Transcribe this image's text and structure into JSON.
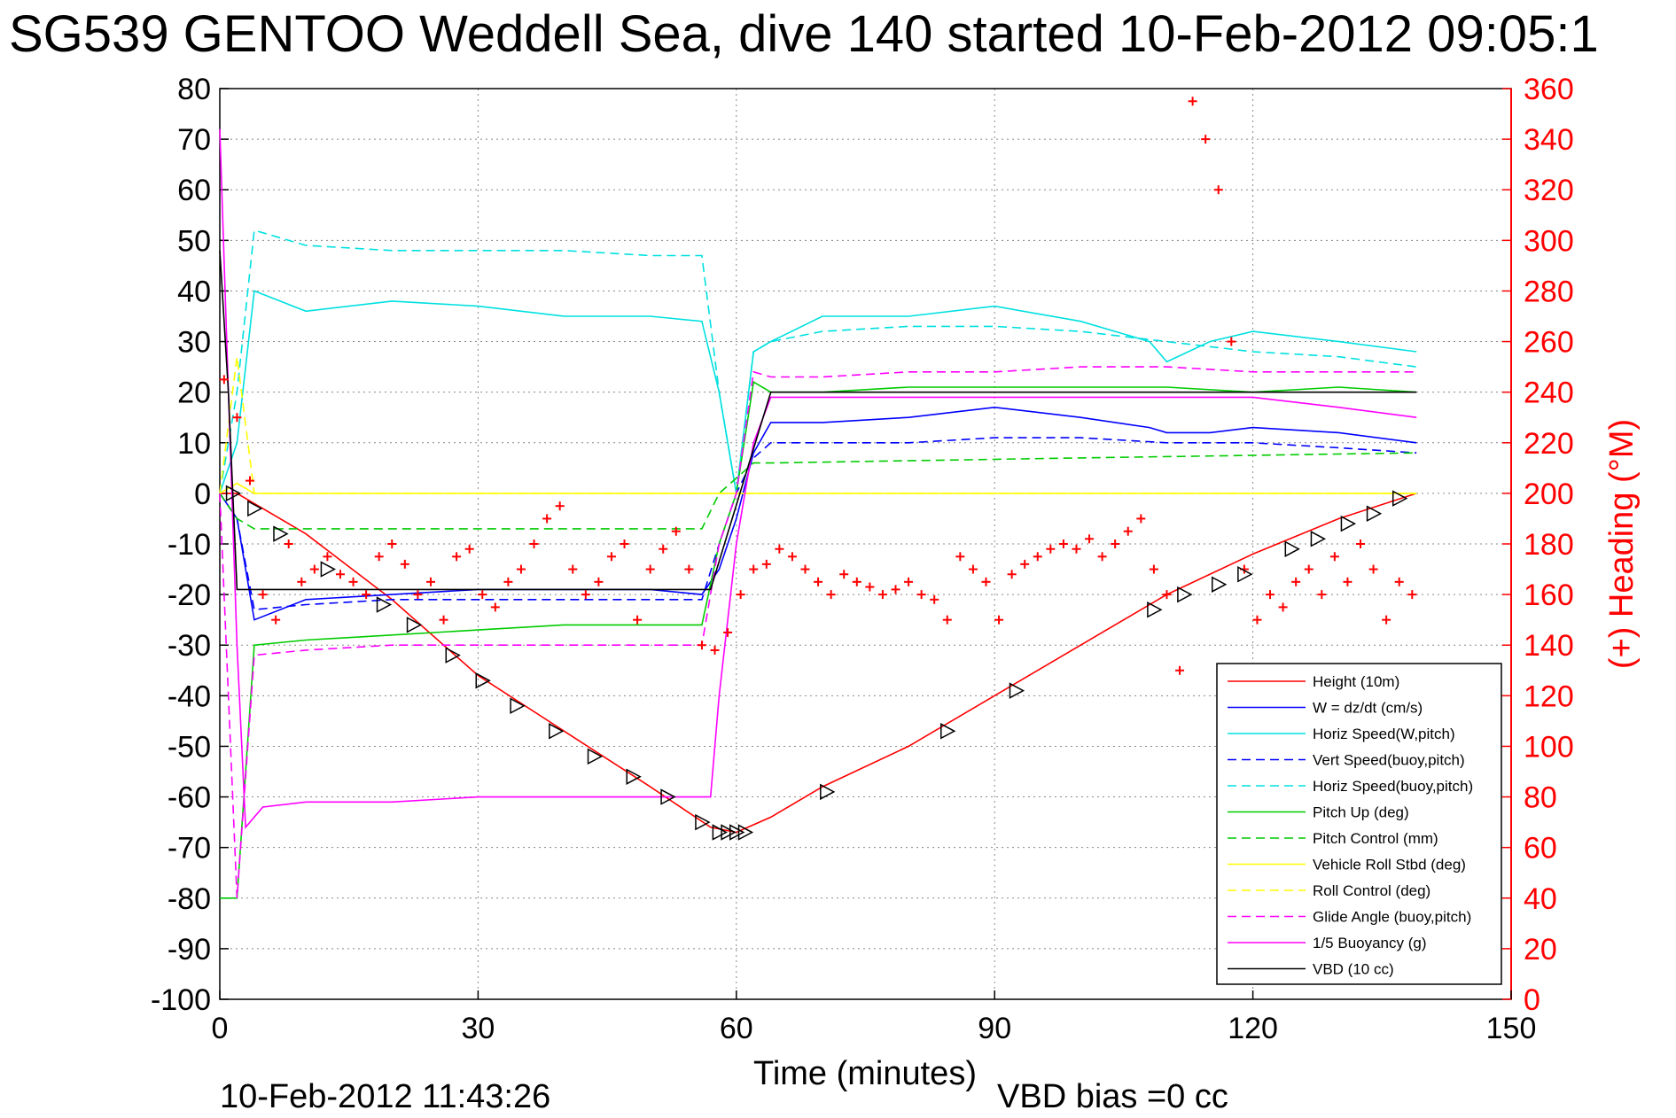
{
  "chart_data": {
    "type": "line",
    "title": "SG539 GENTOO Weddell Sea, dive 140 started 10-Feb-2012 09:05:1",
    "xlabel": "Time (minutes)",
    "ylabel": "",
    "y2label": "(+) Heading (°M)",
    "xlim": [
      0,
      150
    ],
    "ylim": [
      -100,
      80
    ],
    "y2lim": [
      0,
      360
    ],
    "xticks": [
      0,
      30,
      60,
      90,
      120,
      150
    ],
    "yticks": [
      80,
      70,
      60,
      50,
      40,
      30,
      20,
      10,
      0,
      -10,
      -20,
      -30,
      -40,
      -50,
      -60,
      -70,
      -80,
      -90,
      -100
    ],
    "y2ticks": [
      360,
      340,
      320,
      300,
      280,
      260,
      240,
      220,
      200,
      180,
      160,
      140,
      120,
      100,
      80,
      60,
      40,
      20,
      0
    ],
    "grid": true,
    "legend_position": "lower-right",
    "footer_left": "10-Feb-2012 11:43:26",
    "footer_right": "VBD bias =0 cc",
    "series": [
      {
        "name": "Height (10m)",
        "color": "#ff0000",
        "dash": "solid",
        "x": [
          0,
          2,
          10,
          20,
          30,
          40,
          50,
          57,
          60,
          64,
          70,
          80,
          90,
          100,
          110,
          120,
          130,
          139
        ],
        "y": [
          0,
          0,
          -8,
          -21,
          -36,
          -47,
          -58,
          -66,
          -67,
          -64,
          -58,
          -50,
          -40,
          -30,
          -20,
          -12,
          -5,
          0
        ]
      },
      {
        "name": "W = dz/dt (cm/s)",
        "color": "#0000ff",
        "dash": "solid",
        "x": [
          0,
          2,
          4,
          10,
          20,
          30,
          40,
          50,
          56,
          58,
          60,
          62,
          64,
          70,
          80,
          90,
          100,
          108,
          110,
          115,
          120,
          130,
          139
        ],
        "y": [
          0,
          -5,
          -25,
          -21,
          -20,
          -19,
          -19,
          -19,
          -20,
          -15,
          -5,
          8,
          14,
          14,
          15,
          17,
          15,
          13,
          12,
          12,
          13,
          12,
          10
        ]
      },
      {
        "name": "Horiz Speed(W,pitch)",
        "color": "#00e0e0",
        "dash": "solid",
        "x": [
          0,
          2,
          4,
          10,
          20,
          30,
          40,
          50,
          56,
          58,
          60,
          62,
          64,
          70,
          80,
          90,
          100,
          108,
          110,
          115,
          120,
          130,
          139
        ],
        "y": [
          0,
          10,
          40,
          36,
          38,
          37,
          35,
          35,
          34,
          20,
          0,
          28,
          30,
          35,
          35,
          37,
          34,
          30,
          26,
          30,
          32,
          30,
          28
        ]
      },
      {
        "name": "Vert Speed(buoy,pitch)",
        "color": "#0000ff",
        "dash": "dashed",
        "x": [
          0,
          2,
          4,
          10,
          20,
          30,
          40,
          50,
          56,
          58,
          60,
          62,
          64,
          70,
          80,
          90,
          100,
          110,
          120,
          130,
          139
        ],
        "y": [
          0,
          -5,
          -23,
          -22,
          -21,
          -21,
          -21,
          -21,
          -21,
          -10,
          0,
          7,
          10,
          10,
          10,
          11,
          11,
          10,
          10,
          9,
          8
        ]
      },
      {
        "name": "Horiz Speed(buoy,pitch)",
        "color": "#00e0e0",
        "dash": "dashed",
        "x": [
          0,
          2,
          4,
          10,
          20,
          30,
          40,
          50,
          56,
          58,
          60,
          62,
          64,
          70,
          80,
          90,
          100,
          110,
          120,
          130,
          139
        ],
        "y": [
          0,
          20,
          52,
          49,
          48,
          48,
          48,
          47,
          47,
          20,
          0,
          28,
          30,
          32,
          33,
          33,
          32,
          30,
          28,
          27,
          25
        ]
      },
      {
        "name": "Pitch Up (deg)",
        "color": "#00cc00",
        "dash": "solid",
        "x": [
          0,
          2,
          4,
          10,
          20,
          30,
          40,
          50,
          56,
          58,
          60,
          62,
          64,
          70,
          80,
          90,
          100,
          110,
          120,
          130,
          139
        ],
        "y": [
          -80,
          -80,
          -30,
          -29,
          -28,
          -27,
          -26,
          -26,
          -26,
          -10,
          0,
          22,
          20,
          20,
          21,
          21,
          21,
          21,
          20,
          21,
          20
        ]
      },
      {
        "name": "Pitch Control (mm)",
        "color": "#00cc00",
        "dash": "dashed",
        "x": [
          0,
          2,
          4,
          56,
          58,
          62,
          64,
          100,
          139
        ],
        "y": [
          0,
          -5,
          -7,
          -7,
          0,
          6,
          6,
          7,
          8
        ]
      },
      {
        "name": "Vehicle Roll Stbd (deg)",
        "color": "#ffff00",
        "dash": "solid",
        "x": [
          0,
          2,
          4,
          10,
          20,
          30,
          40,
          50,
          56,
          60,
          70,
          80,
          90,
          100,
          110,
          120,
          130,
          139
        ],
        "y": [
          0,
          2,
          0,
          0,
          0,
          0,
          0,
          0,
          0,
          0,
          0,
          0,
          0,
          0,
          0,
          0,
          0,
          0
        ]
      },
      {
        "name": "Roll Control (deg)",
        "color": "#ffff00",
        "dash": "dashed",
        "x": [
          0,
          2,
          4,
          10,
          20,
          30,
          40,
          50,
          56,
          60,
          70,
          80,
          90,
          100,
          110,
          120,
          130,
          139
        ],
        "y": [
          0,
          27,
          0,
          0,
          0,
          0,
          0,
          0,
          0,
          0,
          0,
          0,
          0,
          0,
          0,
          0,
          0,
          0
        ]
      },
      {
        "name": "Glide Angle (buoy,pitch)",
        "color": "#ff00ff",
        "dash": "dashed",
        "x": [
          0,
          2,
          4,
          10,
          20,
          30,
          40,
          50,
          56,
          58,
          60,
          62,
          64,
          70,
          80,
          90,
          100,
          110,
          120,
          130,
          139
        ],
        "y": [
          0,
          -80,
          -32,
          -31,
          -30,
          -30,
          -30,
          -30,
          -30,
          -10,
          0,
          24,
          23,
          23,
          24,
          24,
          25,
          25,
          24,
          24,
          24
        ]
      },
      {
        "name": "1/5 Buoyancy (g)",
        "color": "#ff00ff",
        "dash": "solid",
        "x": [
          0,
          1,
          2,
          3,
          5,
          10,
          20,
          30,
          40,
          50,
          57,
          58,
          60,
          62,
          64,
          70,
          80,
          90,
          100,
          110,
          120,
          130,
          139
        ],
        "y": [
          72,
          20,
          -30,
          -66,
          -62,
          -61,
          -61,
          -60,
          -60,
          -60,
          -60,
          -40,
          -10,
          10,
          19,
          19,
          19,
          19,
          19,
          19,
          19,
          17,
          15
        ]
      },
      {
        "name": "VBD (10 cc)",
        "color": "#000000",
        "dash": "solid",
        "x": [
          0,
          1,
          2,
          3,
          57,
          64,
          139
        ],
        "y": [
          48,
          20,
          -19,
          -19,
          -19,
          20,
          20
        ]
      }
    ],
    "heading_series": {
      "axis": "right",
      "marker": "+",
      "color": "#ff0000",
      "x": [
        0.5,
        2,
        3.5,
        5,
        6.5,
        8,
        9.5,
        11,
        12.5,
        14,
        15.5,
        17,
        18.5,
        20,
        21.5,
        23,
        24.5,
        26,
        27.5,
        29,
        30.5,
        32,
        33.5,
        35,
        36.5,
        38,
        39.5,
        41,
        42.5,
        44,
        45.5,
        47,
        48.5,
        50,
        51.5,
        53,
        54.5,
        56,
        57.5,
        59,
        60.5,
        62,
        63.5,
        65,
        66.5,
        68,
        69.5,
        71,
        72.5,
        74,
        75.5,
        77,
        78.5,
        80,
        81.5,
        83,
        84.5,
        86,
        87.5,
        89,
        90.5,
        92,
        93.5,
        95,
        96.5,
        98,
        99.5,
        101,
        102.5,
        104,
        105.5,
        107,
        108.5,
        110,
        111.5,
        113,
        114.5,
        116,
        117.5,
        119,
        120.5,
        122,
        123.5,
        125,
        126.5,
        128,
        129.5,
        131,
        132.5,
        134,
        135.5,
        137,
        138.5
      ],
      "y": [
        245,
        230,
        205,
        160,
        150,
        180,
        165,
        170,
        175,
        168,
        165,
        160,
        175,
        180,
        172,
        160,
        165,
        150,
        175,
        178,
        160,
        155,
        165,
        170,
        180,
        190,
        195,
        170,
        160,
        165,
        175,
        180,
        150,
        170,
        178,
        185,
        170,
        140,
        138,
        145,
        160,
        170,
        172,
        178,
        175,
        170,
        165,
        160,
        168,
        165,
        163,
        160,
        162,
        165,
        160,
        158,
        150,
        175,
        170,
        165,
        150,
        168,
        172,
        175,
        178,
        180,
        178,
        182,
        175,
        180,
        185,
        190,
        170,
        160,
        130,
        355,
        340,
        320,
        260,
        170,
        150,
        160,
        155,
        165,
        170,
        160,
        175,
        165,
        180,
        170,
        150,
        165,
        160
      ]
    },
    "dive_markers": {
      "color": "#000000",
      "x": [
        1.5,
        4,
        7,
        12.5,
        19,
        22.5,
        27,
        30.5,
        34.5,
        39,
        43.5,
        48,
        52,
        56,
        58,
        59,
        60,
        61,
        70.5,
        84.5,
        92.5,
        108.5,
        112,
        116,
        119,
        124.5,
        127.5,
        131,
        134,
        137
      ],
      "y": [
        0,
        -3,
        -8,
        -15,
        -22,
        -26,
        -32,
        -37,
        -42,
        -47,
        -52,
        -56,
        -60,
        -65,
        -67,
        -67,
        -67,
        -67,
        -59,
        -47,
        -39,
        -23,
        -20,
        -18,
        -16,
        -11,
        -9,
        -6,
        -4,
        -1
      ]
    }
  }
}
